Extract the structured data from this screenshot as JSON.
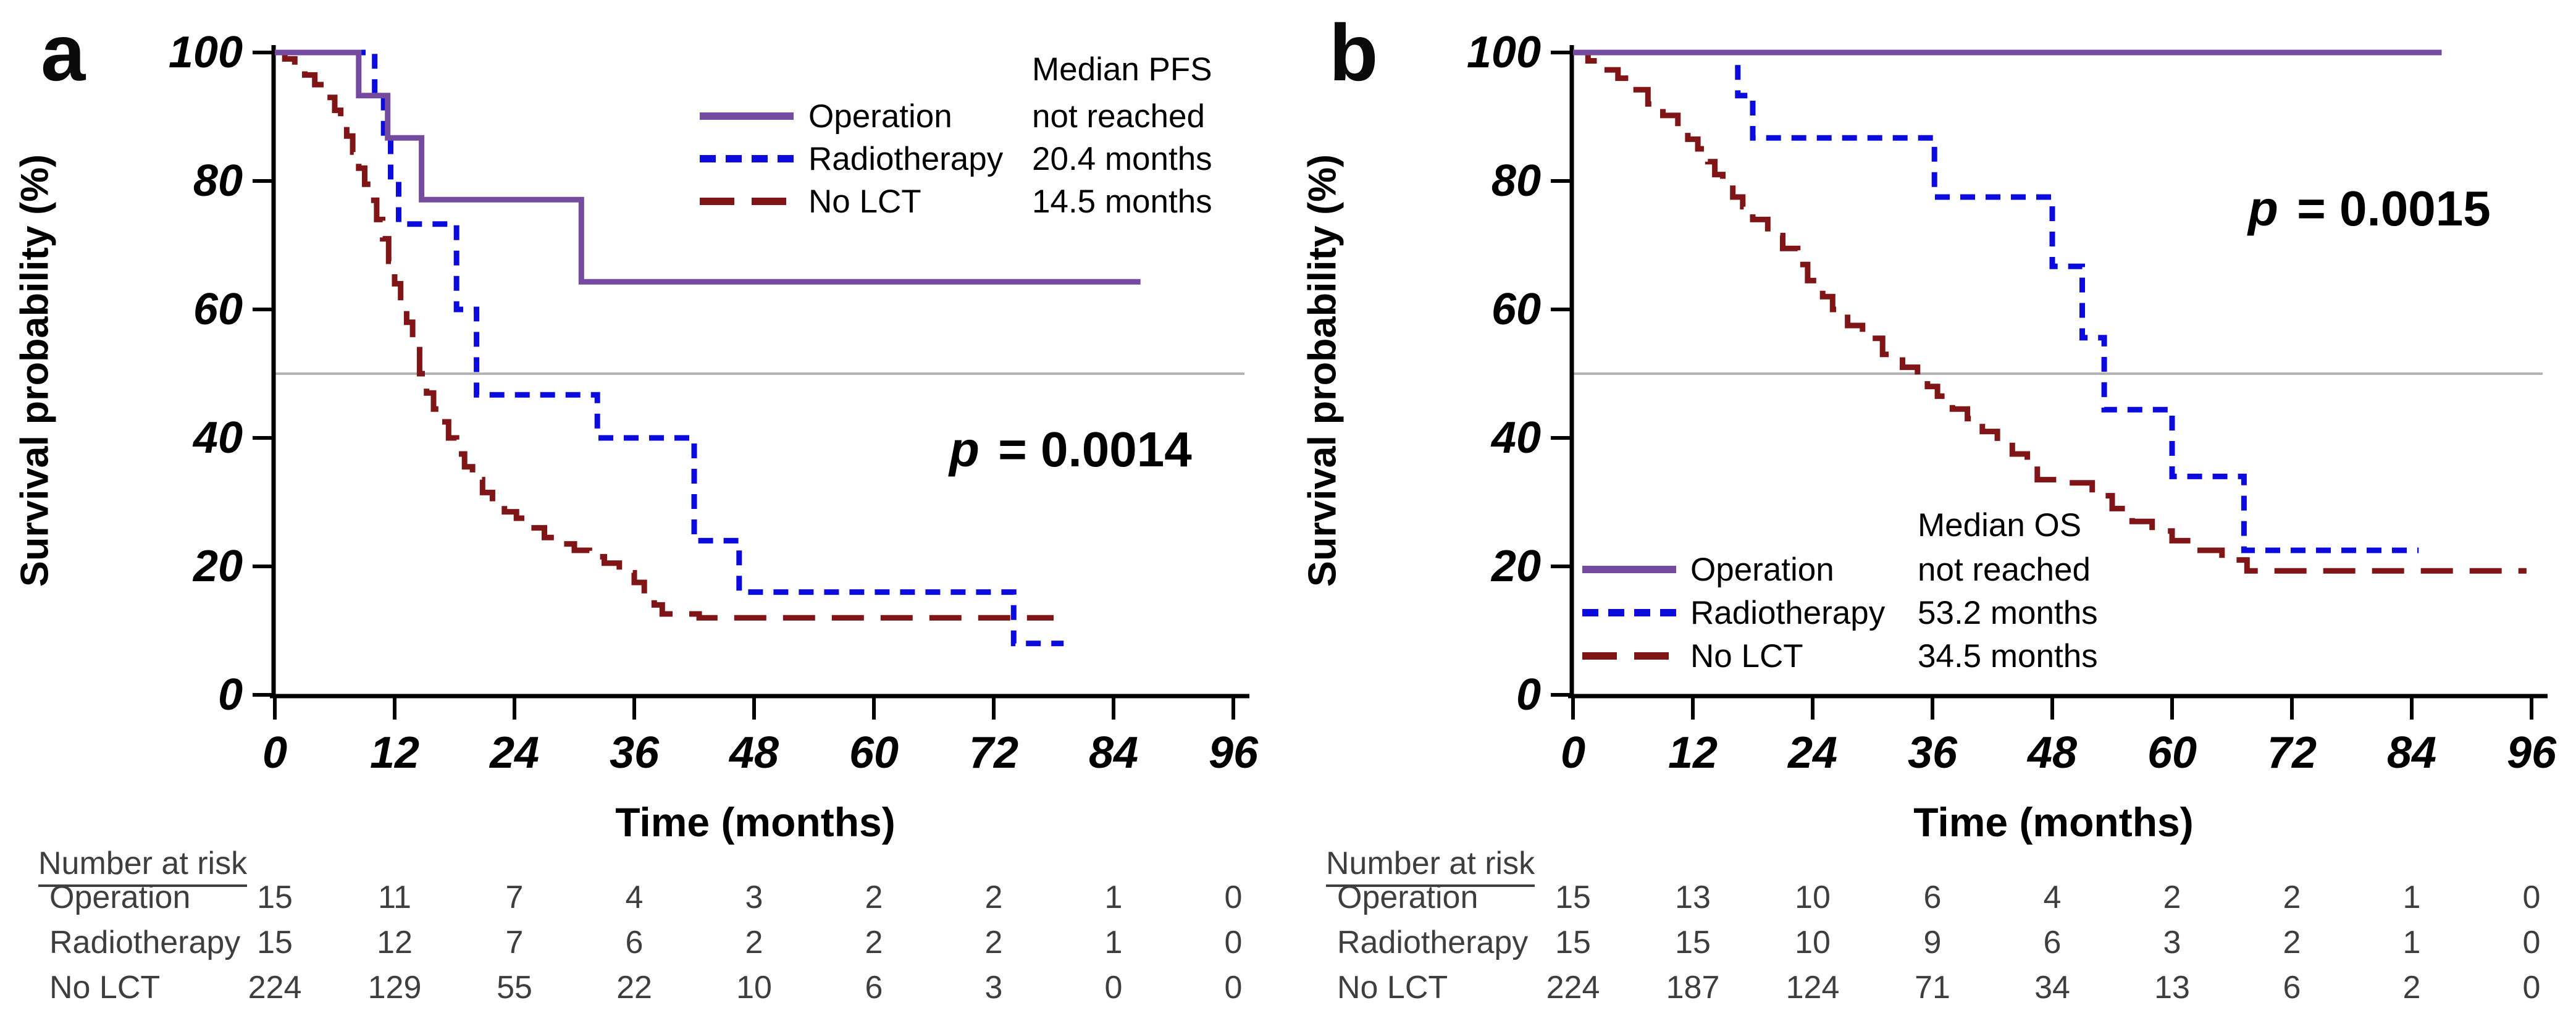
{
  "figure": {
    "background": "#ffffff",
    "colors": {
      "operation": "#754ba0",
      "radiotherapy": "#0b0bdd",
      "no_lct": "#801517",
      "axis": "#000000",
      "reference_line": "#b3b3b3",
      "table_text": "#3e3e3e"
    },
    "panels": [
      {
        "label": "a",
        "y_axis_title": "Survival probability (%)",
        "x_axis_title": "Time (months)",
        "p_italic": "p",
        "p_rest": " = 0.0014",
        "legend": {
          "header": "Median PFS",
          "rows": [
            {
              "label": "Operation",
              "value": "not reached"
            },
            {
              "label": "Radiotherapy",
              "value": "20.4 months"
            },
            {
              "label": "No LCT",
              "value": "14.5 months"
            }
          ]
        },
        "risk_table": {
          "header": "Number at risk",
          "rows": [
            {
              "label": "Operation",
              "counts": [
                15,
                11,
                7,
                4,
                3,
                2,
                2,
                1,
                0
              ]
            },
            {
              "label": "Radiotherapy",
              "counts": [
                15,
                12,
                7,
                6,
                2,
                2,
                2,
                1,
                0
              ]
            },
            {
              "label": "No LCT",
              "counts": [
                224,
                129,
                55,
                22,
                10,
                6,
                3,
                0,
                0
              ]
            }
          ]
        }
      },
      {
        "label": "b",
        "y_axis_title": "Survival probability (%)",
        "x_axis_title": "Time (months)",
        "p_italic": "p",
        "p_rest": " = 0.0015",
        "legend": {
          "header": "Median OS",
          "rows": [
            {
              "label": "Operation",
              "value": "not reached"
            },
            {
              "label": "Radiotherapy",
              "value": "53.2 months"
            },
            {
              "label": "No LCT",
              "value": "34.5 months"
            }
          ]
        },
        "risk_table": {
          "header": "Number at risk",
          "rows": [
            {
              "label": "Operation",
              "counts": [
                15,
                13,
                10,
                6,
                4,
                2,
                2,
                1,
                0
              ]
            },
            {
              "label": "Radiotherapy",
              "counts": [
                15,
                15,
                10,
                9,
                6,
                3,
                2,
                1,
                0
              ]
            },
            {
              "label": "No LCT",
              "counts": [
                224,
                187,
                124,
                71,
                34,
                13,
                6,
                2,
                0
              ]
            }
          ]
        }
      }
    ]
  },
  "chart_data": [
    {
      "type": "line",
      "subtype": "kaplan_meier_step",
      "panel": "a",
      "xlabel": "Time (months)",
      "ylabel": "Survival probability (%)",
      "xlim": [
        0,
        96
      ],
      "ylim": [
        0,
        100
      ],
      "x_ticks": [
        0,
        12,
        24,
        36,
        48,
        60,
        72,
        84,
        96
      ],
      "y_ticks": [
        100,
        80,
        60,
        40,
        20,
        0
      ],
      "reference_line_y": 50,
      "grid": false,
      "legend_position": "upper right",
      "p_value": "p = 0.0014",
      "series": [
        {
          "name": "Operation",
          "median": "not reached",
          "color": "#754ba0",
          "dash": "solid",
          "knots": [
            [
              0,
              100
            ],
            [
              8.4,
              93.3
            ],
            [
              11.3,
              86.7
            ],
            [
              14.7,
              77.1
            ],
            [
              30.7,
              64.3
            ],
            [
              86.7,
              64.3
            ]
          ]
        },
        {
          "name": "Radiotherapy",
          "median": "20.4 months",
          "color": "#0b0bdd",
          "dash": "short",
          "knots": [
            [
              0,
              100
            ],
            [
              10,
              93.3
            ],
            [
              10.9,
              86.7
            ],
            [
              11.6,
              80
            ],
            [
              12.4,
              73.3
            ],
            [
              18.2,
              60
            ],
            [
              20.2,
              46.7
            ],
            [
              32.3,
              40
            ],
            [
              42,
              24
            ],
            [
              46.5,
              16
            ],
            [
              74,
              8
            ],
            [
              79,
              8
            ]
          ]
        },
        {
          "name": "No LCT",
          "median": "14.5 months",
          "color": "#801517",
          "dash": "long",
          "knots": [
            [
              0,
              100
            ],
            [
              1,
              99
            ],
            [
              2,
              98
            ],
            [
              3,
              96.5
            ],
            [
              4,
              95
            ],
            [
              5,
              93
            ],
            [
              6,
              91
            ],
            [
              6.6,
              89
            ],
            [
              7.2,
              87
            ],
            [
              7.8,
              84.5
            ],
            [
              8.4,
              82
            ],
            [
              9,
              79.5
            ],
            [
              9.6,
              77
            ],
            [
              10.2,
              74
            ],
            [
              10.8,
              71
            ],
            [
              11.4,
              67.5
            ],
            [
              12,
              64
            ],
            [
              12.6,
              61
            ],
            [
              13.2,
              58
            ],
            [
              13.8,
              55
            ],
            [
              14.5,
              50
            ],
            [
              15.2,
              47
            ],
            [
              15.9,
              44.5
            ],
            [
              16.6,
              42.5
            ],
            [
              17.4,
              40
            ],
            [
              18.2,
              37.5
            ],
            [
              19,
              35.5
            ],
            [
              19.8,
              33.5
            ],
            [
              20.8,
              31.5
            ],
            [
              21.8,
              30
            ],
            [
              23,
              28.5
            ],
            [
              24.2,
              27.5
            ],
            [
              25.5,
              26
            ],
            [
              27,
              24.5
            ],
            [
              28.5,
              23.5
            ],
            [
              30,
              22.5
            ],
            [
              31.5,
              21.5
            ],
            [
              33,
              20.5
            ],
            [
              34.5,
              19
            ],
            [
              36,
              17.5
            ],
            [
              37,
              15.5
            ],
            [
              38,
              14
            ],
            [
              38.8,
              12.6
            ],
            [
              42.5,
              12
            ],
            [
              78,
              12
            ]
          ]
        }
      ]
    },
    {
      "type": "line",
      "subtype": "kaplan_meier_step",
      "panel": "b",
      "xlabel": "Time (months)",
      "ylabel": "Survival probability (%)",
      "xlim": [
        0,
        96
      ],
      "ylim": [
        0,
        100
      ],
      "x_ticks": [
        0,
        12,
        24,
        36,
        48,
        60,
        72,
        84,
        96
      ],
      "y_ticks": [
        100,
        80,
        60,
        40,
        20,
        0
      ],
      "reference_line_y": 50,
      "grid": false,
      "legend_position": "lower left",
      "p_value": "p = 0.0015",
      "series": [
        {
          "name": "Operation",
          "median": "not reached",
          "color": "#754ba0",
          "dash": "solid",
          "knots": [
            [
              0,
              100
            ],
            [
              87,
              100
            ]
          ]
        },
        {
          "name": "Radiotherapy",
          "median": "53.2 months",
          "color": "#0b0bdd",
          "dash": "short",
          "knots": [
            [
              0,
              100
            ],
            [
              16.5,
              93.3
            ],
            [
              18,
              86.7
            ],
            [
              36.2,
              77.5
            ],
            [
              48,
              66.7
            ],
            [
              51,
              55.6
            ],
            [
              53.2,
              44.4
            ],
            [
              60,
              34
            ],
            [
              67.2,
              22.5
            ],
            [
              84.7,
              22.5
            ]
          ]
        },
        {
          "name": "No LCT",
          "median": "34.5 months",
          "color": "#801517",
          "dash": "long",
          "knots": [
            [
              0,
              100
            ],
            [
              1.5,
              98.7
            ],
            [
              3,
              97.3
            ],
            [
              4.5,
              96
            ],
            [
              6,
              94.2
            ],
            [
              7.5,
              92
            ],
            [
              9,
              90.2
            ],
            [
              10.5,
              88
            ],
            [
              11.5,
              86.5
            ],
            [
              12.5,
              85
            ],
            [
              13.5,
              83
            ],
            [
              14.2,
              81
            ],
            [
              15,
              79.5
            ],
            [
              16,
              77.5
            ],
            [
              17,
              76
            ],
            [
              18,
              74
            ],
            [
              19.5,
              71.5
            ],
            [
              21,
              69.5
            ],
            [
              22.5,
              67
            ],
            [
              23.5,
              64.5
            ],
            [
              25,
              62
            ],
            [
              26,
              60
            ],
            [
              27.5,
              57.5
            ],
            [
              29,
              55.5
            ],
            [
              31,
              53
            ],
            [
              33,
              51
            ],
            [
              34.5,
              49.5
            ],
            [
              35.5,
              48
            ],
            [
              36.5,
              46.5
            ],
            [
              38,
              44.5
            ],
            [
              39.5,
              43
            ],
            [
              41,
              41
            ],
            [
              42.5,
              39.5
            ],
            [
              44,
              37.5
            ],
            [
              45.5,
              36
            ],
            [
              46.5,
              33.5
            ],
            [
              49.5,
              33
            ],
            [
              52,
              31
            ],
            [
              54,
              29
            ],
            [
              56,
              27
            ],
            [
              58,
              25.5
            ],
            [
              60,
              24
            ],
            [
              62.5,
              22.5
            ],
            [
              65,
              21
            ],
            [
              67.5,
              19.3
            ],
            [
              95.5,
              19.3
            ]
          ]
        }
      ]
    }
  ]
}
